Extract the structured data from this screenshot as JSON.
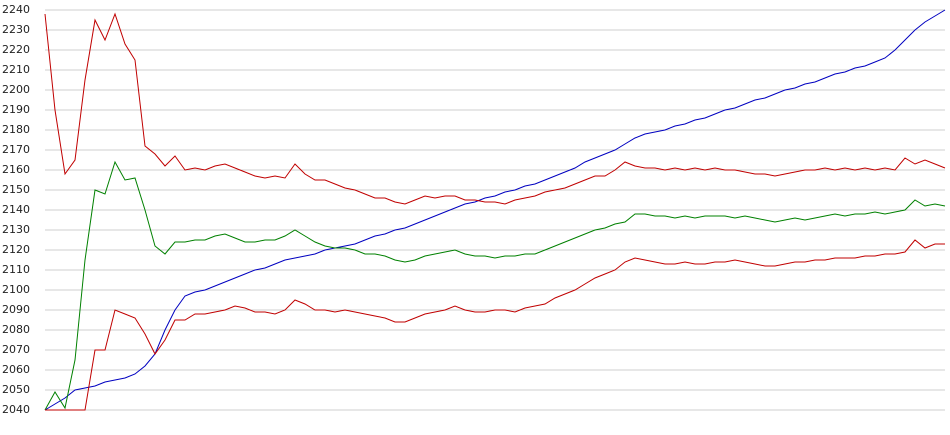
{
  "chart_data": {
    "type": "line",
    "ylim": [
      2040,
      2240
    ],
    "yticks": [
      2040,
      2050,
      2060,
      2070,
      2080,
      2090,
      2100,
      2110,
      2120,
      2130,
      2140,
      2150,
      2160,
      2170,
      2180,
      2190,
      2200,
      2210,
      2220,
      2230,
      2240
    ],
    "grid": true,
    "series": [
      {
        "color": "#0000c0",
        "values": [
          2040,
          2043,
          2046,
          2050,
          2051,
          2052,
          2054,
          2055,
          2056,
          2058,
          2062,
          2068,
          2080,
          2090,
          2097,
          2099,
          2100,
          2102,
          2104,
          2106,
          2108,
          2110,
          2111,
          2113,
          2115,
          2116,
          2117,
          2118,
          2120,
          2121,
          2122,
          2123,
          2125,
          2127,
          2128,
          2130,
          2131,
          2133,
          2135,
          2137,
          2139,
          2141,
          2143,
          2144,
          2146,
          2147,
          2149,
          2150,
          2152,
          2153,
          2155,
          2157,
          2159,
          2161,
          2164,
          2166,
          2168,
          2170,
          2173,
          2176,
          2178,
          2179,
          2180,
          2182,
          2183,
          2185,
          2186,
          2188,
          2190,
          2191,
          2193,
          2195,
          2196,
          2198,
          2200,
          2201,
          2203,
          2204,
          2206,
          2208,
          2209,
          2211,
          2212,
          2214,
          2216,
          2220,
          2225,
          2230,
          2234,
          2237,
          2240
        ]
      },
      {
        "color": "#c00000",
        "values": [
          2238,
          2190,
          2158,
          2165,
          2205,
          2235,
          2225,
          2238,
          2223,
          2215,
          2172,
          2168,
          2162,
          2167,
          2160,
          2161,
          2160,
          2162,
          2163,
          2161,
          2159,
          2157,
          2156,
          2157,
          2156,
          2163,
          2158,
          2155,
          2155,
          2153,
          2151,
          2150,
          2148,
          2146,
          2146,
          2144,
          2143,
          2145,
          2147,
          2146,
          2147,
          2147,
          2145,
          2145,
          2144,
          2144,
          2143,
          2145,
          2146,
          2147,
          2149,
          2150,
          2151,
          2153,
          2155,
          2157,
          2157,
          2160,
          2164,
          2162,
          2161,
          2161,
          2160,
          2161,
          2160,
          2161,
          2160,
          2161,
          2160,
          2160,
          2159,
          2158,
          2158,
          2157,
          2158,
          2159,
          2160,
          2160,
          2161,
          2160,
          2161,
          2160,
          2161,
          2160,
          2161,
          2160,
          2166,
          2163,
          2165,
          2163,
          2161
        ]
      },
      {
        "color": "#008000",
        "values": [
          2040,
          2049,
          2041,
          2065,
          2115,
          2150,
          2148,
          2164,
          2155,
          2156,
          2140,
          2122,
          2118,
          2124,
          2124,
          2125,
          2125,
          2127,
          2128,
          2126,
          2124,
          2124,
          2125,
          2125,
          2127,
          2130,
          2127,
          2124,
          2122,
          2121,
          2121,
          2120,
          2118,
          2118,
          2117,
          2115,
          2114,
          2115,
          2117,
          2118,
          2119,
          2120,
          2118,
          2117,
          2117,
          2116,
          2117,
          2117,
          2118,
          2118,
          2120,
          2122,
          2124,
          2126,
          2128,
          2130,
          2131,
          2133,
          2134,
          2138,
          2138,
          2137,
          2137,
          2136,
          2137,
          2136,
          2137,
          2137,
          2137,
          2136,
          2137,
          2136,
          2135,
          2134,
          2135,
          2136,
          2135,
          2136,
          2137,
          2138,
          2137,
          2138,
          2138,
          2139,
          2138,
          2139,
          2140,
          2145,
          2142,
          2143,
          2142
        ]
      },
      {
        "color": "#c00000",
        "values": [
          2040,
          2040,
          2040,
          2040,
          2040,
          2070,
          2070,
          2090,
          2088,
          2086,
          2078,
          2068,
          2075,
          2085,
          2085,
          2088,
          2088,
          2089,
          2090,
          2092,
          2091,
          2089,
          2089,
          2088,
          2090,
          2095,
          2093,
          2090,
          2090,
          2089,
          2090,
          2089,
          2088,
          2087,
          2086,
          2084,
          2084,
          2086,
          2088,
          2089,
          2090,
          2092,
          2090,
          2089,
          2089,
          2090,
          2090,
          2089,
          2091,
          2092,
          2093,
          2096,
          2098,
          2100,
          2103,
          2106,
          2108,
          2110,
          2114,
          2116,
          2115,
          2114,
          2113,
          2113,
          2114,
          2113,
          2113,
          2114,
          2114,
          2115,
          2114,
          2113,
          2112,
          2112,
          2113,
          2114,
          2114,
          2115,
          2115,
          2116,
          2116,
          2116,
          2117,
          2117,
          2118,
          2118,
          2119,
          2125,
          2121,
          2123,
          2123
        ]
      }
    ]
  }
}
